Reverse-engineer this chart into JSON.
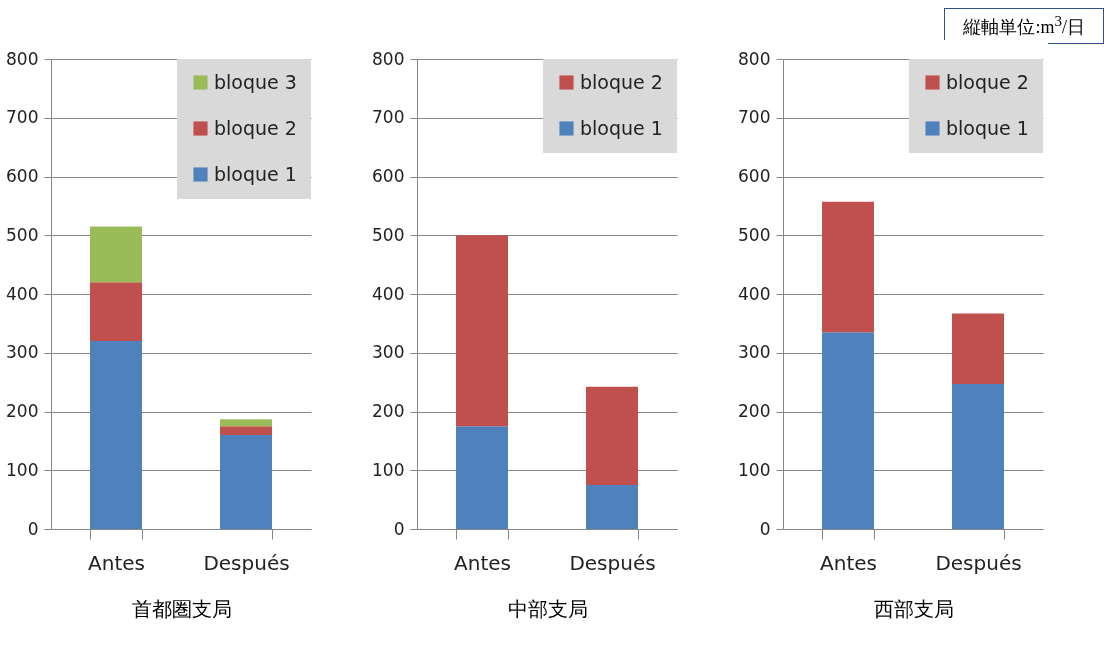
{
  "chart_data": [
    {
      "type": "bar",
      "stacked": true,
      "xlabel": "首都圏支局",
      "categories": [
        "Antes",
        "Después"
      ],
      "series": [
        {
          "name": "bloque 1",
          "color": "#4f81bd",
          "values": [
            320,
            160
          ]
        },
        {
          "name": "bloque 2",
          "color": "#c0504d",
          "values": [
            100,
            15
          ]
        },
        {
          "name": "bloque 3",
          "color": "#9bbb59",
          "values": [
            95,
            12
          ]
        }
      ],
      "ylim": [
        0,
        800
      ],
      "yticks": [
        0,
        100,
        200,
        300,
        400,
        500,
        600,
        700,
        800
      ],
      "grid": "y",
      "legend": "top right"
    },
    {
      "type": "bar",
      "stacked": true,
      "xlabel": "中部支局",
      "categories": [
        "Antes",
        "Después"
      ],
      "series": [
        {
          "name": "bloque 1",
          "color": "#4f81bd",
          "values": [
            175,
            75
          ]
        },
        {
          "name": "bloque 2",
          "color": "#c0504d",
          "values": [
            325,
            167
          ]
        }
      ],
      "ylim": [
        0,
        800
      ],
      "yticks": [
        0,
        100,
        200,
        300,
        400,
        500,
        600,
        700,
        800
      ],
      "grid": "y",
      "legend": "top right"
    },
    {
      "type": "bar",
      "stacked": true,
      "xlabel": "西部支局",
      "categories": [
        "Antes",
        "Después"
      ],
      "series": [
        {
          "name": "bloque 1",
          "color": "#4f81bd",
          "values": [
            335,
            247
          ]
        },
        {
          "name": "bloque 2",
          "color": "#c0504d",
          "values": [
            222,
            120
          ]
        }
      ],
      "ylim": [
        0,
        800
      ],
      "yticks": [
        0,
        100,
        200,
        300,
        400,
        500,
        600,
        700,
        800
      ],
      "grid": "y",
      "legend": "top right",
      "annotations": [
        "縦軸単位:m$^{3}$/日"
      ]
    }
  ]
}
